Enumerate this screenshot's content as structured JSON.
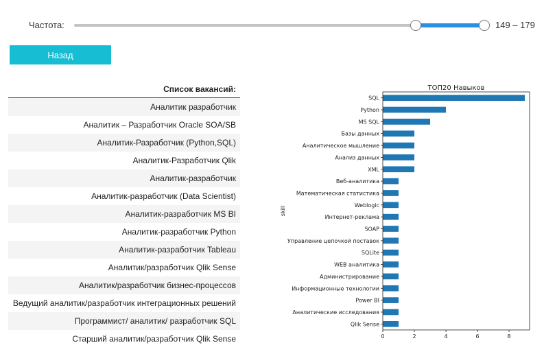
{
  "filter": {
    "label": "Частота:",
    "min": 0,
    "max": 179,
    "low": 149,
    "high": 179,
    "value_text": "149 – 179",
    "track_color": "#2b8fe3"
  },
  "back_button": {
    "label": "Назад",
    "color": "#17bed3"
  },
  "vacancies": {
    "header": "Список вакансий:",
    "rows": [
      "Аналитик разработчик",
      "Аналитик – Разработчик Oracle SOA/SB",
      "Аналитик-Разработчик (Python,SQL)",
      "Аналитик-Разработчик Qlik",
      "Аналитик-разработчик",
      "Аналитик-разработчик (Data Scientist)",
      "Аналитик-разработчик MS BI",
      "Аналитик-разработчик Python",
      "Аналитик-разработчик Tableau",
      "Аналитик/разработчик Qlik Sense",
      "Аналитик/разработчик бизнес-процессов",
      "Ведущий аналитик/разработчик интеграционных решений",
      "Программист/ аналитик/ разработчик SQL",
      "Старший аналитик/разработчик Qlik Sense"
    ]
  },
  "chart_data": {
    "type": "bar",
    "orientation": "horizontal",
    "title": "ТОП20 Навыков",
    "ylabel": "skill",
    "xlabel": "",
    "xlim": [
      0,
      9.3
    ],
    "xticks": [
      0,
      2,
      4,
      6,
      8
    ],
    "bar_color": "#1f77b4",
    "categories": [
      "SQL",
      "Python",
      "MS SQL",
      "Базы данных",
      "Аналитическое мышление",
      "Анализ данных",
      "XML",
      "Веб-аналитика",
      "Математическая статистика",
      "Weblogic",
      "Интернет-реклама",
      "SOAP",
      "Управление цепочкой поставок",
      "SQLite",
      "WEB аналитика",
      "Администрирование",
      "Информационные технологии",
      "Power BI",
      "Аналитические исследования",
      "Qlik Sense"
    ],
    "values": [
      9,
      4,
      3,
      2,
      2,
      2,
      2,
      1,
      1,
      1,
      1,
      1,
      1,
      1,
      1,
      1,
      1,
      1,
      1,
      1
    ],
    "grid": false,
    "legend": "none"
  }
}
